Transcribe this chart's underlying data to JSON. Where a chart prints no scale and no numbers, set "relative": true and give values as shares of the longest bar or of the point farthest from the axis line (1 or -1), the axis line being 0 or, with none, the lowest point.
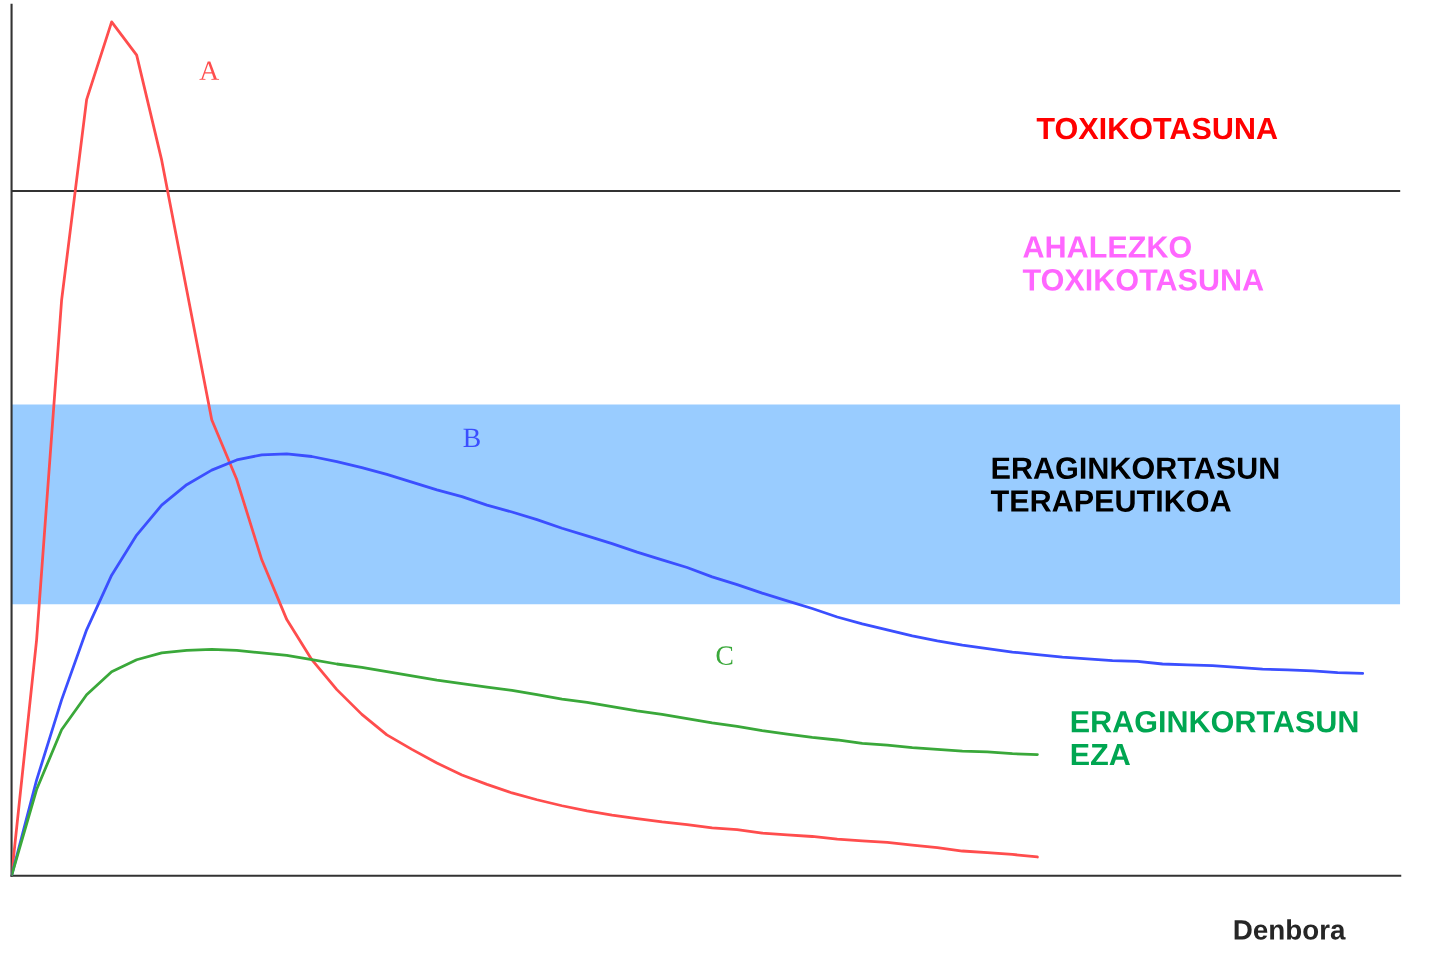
{
  "chart_data": {
    "type": "line",
    "relative": true,
    "xlabel": "Denbora",
    "categories": [
      null,
      null,
      null,
      null,
      null,
      null,
      null,
      null,
      null,
      null,
      null,
      null,
      null,
      null,
      null,
      null,
      null,
      null,
      null,
      null,
      null,
      null,
      null,
      null,
      null,
      null,
      null,
      null,
      null,
      null,
      null,
      null,
      null,
      null,
      null,
      null,
      null,
      null,
      null,
      null,
      null,
      null,
      null,
      null,
      null,
      null,
      null,
      null,
      null,
      null,
      null,
      null,
      null,
      null,
      null,
      null
    ],
    "series": [
      {
        "name": "A",
        "color": "#ff4d4d",
        "values": [
          0,
          0.276,
          0.674,
          0.909,
          1.0,
          0.961,
          0.838,
          0.686,
          0.534,
          0.464,
          0.37,
          0.3,
          0.253,
          0.218,
          0.189,
          0.165,
          0.148,
          0.132,
          0.118,
          0.107,
          0.097,
          0.089,
          0.082,
          0.076,
          0.071,
          0.067,
          0.063,
          0.06,
          0.056,
          0.054,
          0.05,
          0.048,
          0.046,
          0.043,
          0.041,
          0.039,
          0.036,
          0.033,
          0.029,
          0.027,
          0.025,
          0.022,
          null,
          null,
          null,
          null,
          null,
          null,
          null,
          null,
          null,
          null,
          null,
          null,
          null,
          null
        ]
      },
      {
        "name": "B",
        "color": "#3b4fff",
        "values": [
          0,
          0.112,
          0.206,
          0.288,
          0.352,
          0.399,
          0.434,
          0.458,
          0.475,
          0.487,
          0.493,
          0.494,
          0.491,
          0.485,
          0.478,
          0.47,
          0.461,
          0.452,
          0.444,
          0.434,
          0.426,
          0.417,
          0.407,
          0.398,
          0.389,
          0.379,
          0.37,
          0.361,
          0.35,
          0.341,
          0.331,
          0.322,
          0.313,
          0.303,
          0.295,
          0.288,
          0.281,
          0.275,
          0.27,
          0.266,
          0.262,
          0.259,
          0.256,
          0.254,
          0.252,
          0.251,
          0.248,
          0.247,
          0.246,
          0.244,
          0.242,
          0.241,
          0.24,
          0.238,
          0.237,
          null
        ]
      },
      {
        "name": "C",
        "color": "#3aa83a",
        "values": [
          0,
          0.101,
          0.171,
          0.212,
          0.239,
          0.253,
          0.261,
          0.264,
          0.265,
          0.264,
          0.261,
          0.258,
          0.253,
          0.248,
          0.244,
          0.239,
          0.234,
          0.229,
          0.225,
          0.221,
          0.217,
          0.212,
          0.207,
          0.203,
          0.198,
          0.193,
          0.189,
          0.184,
          0.179,
          0.175,
          0.17,
          0.166,
          0.162,
          0.159,
          0.155,
          0.153,
          0.15,
          0.148,
          0.146,
          0.145,
          0.143,
          0.142,
          null,
          null,
          null,
          null,
          null,
          null,
          null,
          null,
          null,
          null,
          null,
          null,
          null,
          null
        ]
      }
    ],
    "ref_lines": [
      {
        "axis": "y",
        "value": 0.802,
        "label": "TOXIKOTASUNA",
        "color": "#333333"
      }
    ],
    "bands": [
      {
        "axis": "y",
        "from": 0.318,
        "to": 0.552,
        "label": "ERAGINKORTASUN\nTERAPEUTIKOA",
        "color": "#99ccff"
      }
    ],
    "annotations": [
      "AHALEZKO\nTOXIKOTASUNA",
      "ERAGINKORTASUN\nEZA"
    ],
    "marker": "none",
    "line_style": "solid"
  }
}
